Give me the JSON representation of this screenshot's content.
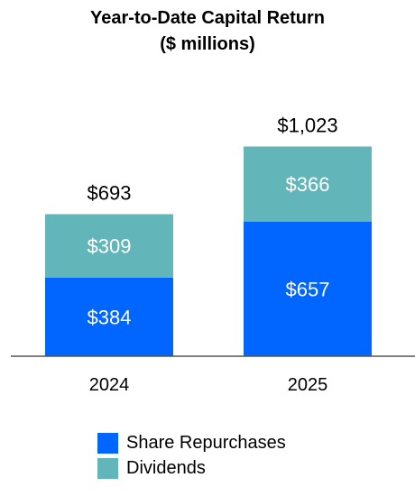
{
  "colors": {
    "repurchases": "#0066ff",
    "dividends": "#62b6b9",
    "axis": "#555555",
    "text_dark": "#000000",
    "text_light": "#ffffff"
  },
  "chart_data": {
    "type": "bar",
    "stacked": true,
    "title": "Year-to-Date Capital Return",
    "subtitle": "($ millions)",
    "categories": [
      "2024",
      "2025"
    ],
    "series": [
      {
        "name": "Share Repurchases",
        "values": [
          384,
          657
        ],
        "labels": [
          "$384",
          "$657"
        ]
      },
      {
        "name": "Dividends",
        "values": [
          309,
          366
        ],
        "labels": [
          "$309",
          "$366"
        ]
      }
    ],
    "totals": [
      693,
      1023
    ],
    "total_labels": [
      "$693",
      "$1,023"
    ],
    "ylim": [
      0,
      1500
    ],
    "grid": false,
    "legend_position": "bottom"
  }
}
